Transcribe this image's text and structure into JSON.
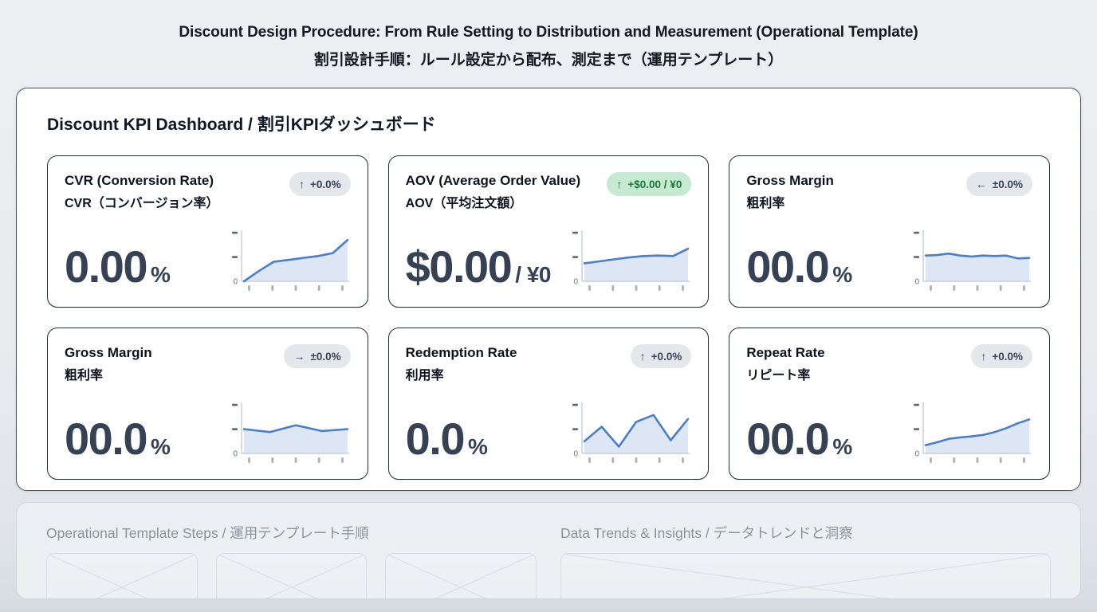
{
  "page_title": {
    "en": "Discount Design Procedure: From Rule Setting to Distribution and Measurement (Operational Template)",
    "ja": "割引設計手順：ルール設定から配布、測定まで（運用テンプレート）"
  },
  "dashboard": {
    "heading": "Discount KPI Dashboard / 割引KPIダッシュボード",
    "spark_axis": {
      "zero_label": "0"
    },
    "cards": [
      {
        "title_en": "CVR (Conversion Rate)",
        "title_ja": "CVR（コンバージョン率）",
        "badge": {
          "arrow": "↑",
          "text": "+0.0%",
          "variant": "neutral"
        },
        "value": "0.00",
        "suffix": "%",
        "sparkline": [
          0,
          21,
          40,
          44,
          48,
          52,
          58,
          85
        ]
      },
      {
        "title_en": "AOV (Average Order Value)",
        "title_ja": "AOV（平均注文額）",
        "badge": {
          "arrow": "↑",
          "text": "+$0.00 / ¥0",
          "variant": "positive"
        },
        "value": "$0.00",
        "suffix": "/ ¥0",
        "sparkline": [
          37,
          41,
          45,
          49,
          52,
          53,
          52,
          67
        ]
      },
      {
        "title_en": "Gross Margin",
        "title_ja": "粗利率",
        "badge": {
          "arrow": "←",
          "text": "±0.0%",
          "variant": "neutral"
        },
        "value": "00.0",
        "suffix": "%",
        "sparkline": [
          53,
          54,
          57,
          53,
          51,
          53,
          52,
          53,
          47,
          48
        ]
      },
      {
        "title_en": "Gross Margin",
        "title_ja": "粗利率",
        "badge": {
          "arrow": "→",
          "text": "±0.0%",
          "variant": "neutral"
        },
        "value": "00.0",
        "suffix": "%",
        "sparkline": [
          50,
          44,
          58,
          46,
          50
        ]
      },
      {
        "title_en": "Redemption Rate",
        "title_ja": "利用率",
        "badge": {
          "arrow": "↑",
          "text": "+0.0%",
          "variant": "neutral"
        },
        "value": "0.0",
        "suffix": "%",
        "sparkline": [
          25,
          55,
          14,
          65,
          79,
          27,
          71
        ]
      },
      {
        "title_en": "Repeat Rate",
        "title_ja": "リピート率",
        "badge": {
          "arrow": "↑",
          "text": "+0.0%",
          "variant": "neutral"
        },
        "value": "00.0",
        "suffix": "%",
        "sparkline": [
          17,
          23,
          30,
          33,
          35,
          38,
          44,
          52,
          62,
          70
        ]
      }
    ]
  },
  "sections": [
    {
      "heading": "Operational Template Steps / 運用テンプレート手順",
      "placeholder_count": 3
    },
    {
      "heading": "Data Trends & Insights / データトレンドと洞察",
      "placeholder_count": 1
    }
  ],
  "colors": {
    "spark_line": "#4d7ec5",
    "spark_fill": "#dde6f5",
    "spark_axis": "#c6cdd7",
    "spark_tick": "#a9b1bd",
    "spark_ylabel_dash": "#5b6472",
    "spark_zero_text": "#6b7280",
    "badge_neutral_bg": "#e4e7ec",
    "badge_neutral_text": "#3a4555",
    "badge_positive_bg": "#c7e9d1",
    "badge_positive_text": "#177a3e",
    "value_text": "#364153",
    "card_border": "#222d3e"
  }
}
